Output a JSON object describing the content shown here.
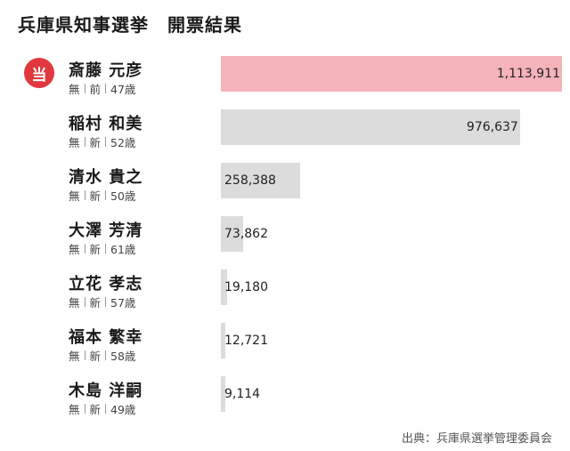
{
  "title": "兵庫県知事選挙　開票結果",
  "source": "出典：兵庫県選挙管理委員会",
  "elected_label": "当",
  "colors": {
    "winner_bar": "#f5b3ba",
    "bar": "#dcdcdc",
    "elected_badge": "#e0383e"
  },
  "chart_data": {
    "type": "bar",
    "orientation": "horizontal",
    "title": "兵庫県知事選挙　開票結果",
    "categories": [
      "斎藤 元彦",
      "稲村 和美",
      "清水 貴之",
      "大澤 芳清",
      "立花 孝志",
      "福本 繁幸",
      "木島 洋嗣"
    ],
    "values": [
      1113911,
      976637,
      258388,
      73862,
      19180,
      12721,
      9114
    ],
    "value_labels": [
      "1,113,911",
      "976,637",
      "258,388",
      "73,862",
      "19,180",
      "12,721",
      "9,114"
    ],
    "candidates": [
      {
        "name": "斎藤 元彦",
        "affiliation": "無",
        "status": "前",
        "age": "47歳",
        "elected": true
      },
      {
        "name": "稲村 和美",
        "affiliation": "無",
        "status": "新",
        "age": "52歳",
        "elected": false
      },
      {
        "name": "清水 貴之",
        "affiliation": "無",
        "status": "新",
        "age": "50歳",
        "elected": false
      },
      {
        "name": "大澤 芳清",
        "affiliation": "無",
        "status": "新",
        "age": "61歳",
        "elected": false
      },
      {
        "name": "立花 孝志",
        "affiliation": "無",
        "status": "新",
        "age": "57歳",
        "elected": false
      },
      {
        "name": "福本 繁幸",
        "affiliation": "無",
        "status": "新",
        "age": "58歳",
        "elected": false
      },
      {
        "name": "木島 洋嗣",
        "affiliation": "無",
        "status": "新",
        "age": "49歳",
        "elected": false
      }
    ]
  }
}
